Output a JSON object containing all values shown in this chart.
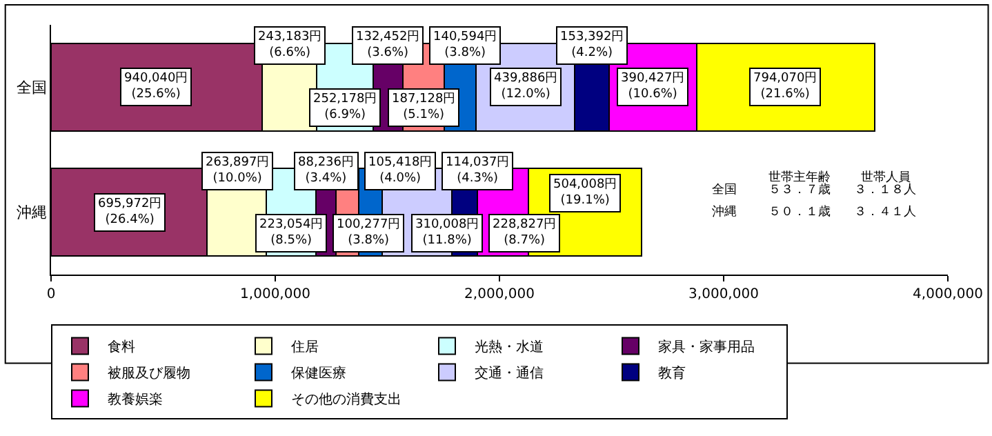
{
  "chart_data": {
    "type": "bar",
    "orientation": "horizontal",
    "stacked": true,
    "categories": [
      "全国",
      "沖縄"
    ],
    "series": [
      {
        "name": "食料",
        "color": "#993366",
        "values": [
          940040,
          695972
        ],
        "value_labels": [
          "940,040円\n(25.6%)",
          "695,972円\n(26.4%)"
        ]
      },
      {
        "name": "住居",
        "color": "#ffffcc",
        "values": [
          243183,
          263897
        ],
        "value_labels": [
          "243,183円\n(6.6%)",
          "263,897円\n(10.0%)"
        ]
      },
      {
        "name": "光熱・水道",
        "color": "#ccffff",
        "values": [
          252178,
          223054
        ],
        "value_labels": [
          "252,178円\n(6.9%)",
          "223,054円\n(8.5%)"
        ]
      },
      {
        "name": "家具・家事用品",
        "color": "#660066",
        "values": [
          132452,
          88236
        ],
        "value_labels": [
          "132,452円\n(3.6%)",
          "88,236円\n(3.4%)"
        ]
      },
      {
        "name": "被服及び履物",
        "color": "#ff8080",
        "values": [
          187128,
          100277
        ],
        "value_labels": [
          "187,128円\n(5.1%)",
          "100,277円\n(3.8%)"
        ]
      },
      {
        "name": "保健医療",
        "color": "#0066cc",
        "values": [
          140594,
          105418
        ],
        "value_labels": [
          "140,594円\n(3.8%)",
          "105,418円\n(4.0%)"
        ]
      },
      {
        "name": "交通・通信",
        "color": "#ccccff",
        "values": [
          439886,
          310008
        ],
        "value_labels": [
          "439,886円\n(12.0%)",
          "310,008円\n(11.8%)"
        ]
      },
      {
        "name": "教育",
        "color": "#000080",
        "values": [
          153392,
          114037
        ],
        "value_labels": [
          "153,392円\n(4.2%)",
          "114,037円\n(4.3%)"
        ]
      },
      {
        "name": "教養娯楽",
        "color": "#ff00ff",
        "values": [
          390427,
          228827
        ],
        "value_labels": [
          "390,427円\n(10.6%)",
          "228,827円\n(8.7%)"
        ]
      },
      {
        "name": "その他の消費支出",
        "color": "#ffff00",
        "values": [
          794070,
          504008
        ],
        "value_labels": [
          "794,070円\n(21.6%)",
          "504,008円\n(19.1%)"
        ]
      }
    ],
    "xlim": [
      0,
      4000000
    ],
    "xticks": [
      {
        "value": 0,
        "label": "0"
      },
      {
        "value": 1000000,
        "label": "1,000,000"
      },
      {
        "value": 2000000,
        "label": "2,000,000"
      },
      {
        "value": 3000000,
        "label": "3,000,000"
      },
      {
        "value": 4000000,
        "label": "4,000,000"
      }
    ],
    "grid": false,
    "legend": "bottom",
    "annotations": [
      "世帯主年齢",
      "世帯人員",
      "全国",
      "５３．７歳",
      "３．１８人",
      "沖縄",
      "５０．１歳",
      "３．４１人"
    ]
  }
}
